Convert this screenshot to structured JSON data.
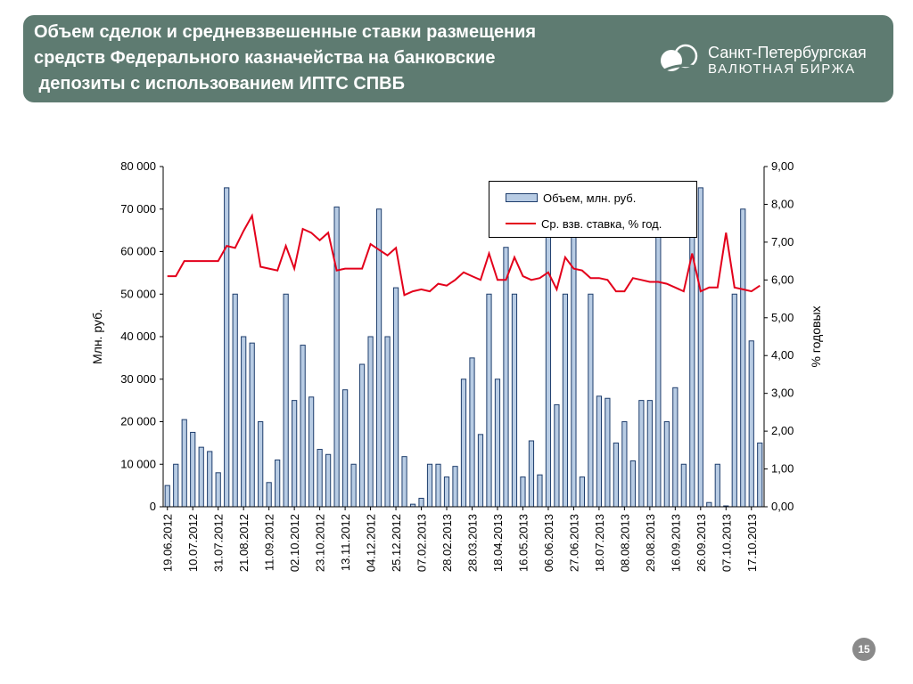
{
  "header": {
    "title_lines": [
      "Объем сделок и средневзвешенные ставки размещения",
      "средств Федерального казначейства на банковские",
      " депозиты с использованием ИПТС СПВБ"
    ],
    "logo_line1": "Санкт-Петербургская",
    "logo_line2": "ВАЛЮТНАЯ БИРЖА"
  },
  "page_number": "15",
  "colors": {
    "header_bg": "#5e7b71",
    "bar_fill": "#b8cce4",
    "bar_border": "#1f3e6d",
    "line": "#e3001b"
  },
  "chart_data": {
    "type": "bar",
    "combo": "bar + line (secondary axis)",
    "ylabel": "Млн. руб.",
    "y2label": "% годовых",
    "ylim": [
      0,
      80000
    ],
    "y2lim": [
      0,
      9
    ],
    "y_ticks": [
      "0",
      "10 000",
      "20 000",
      "30 000",
      "40 000",
      "50 000",
      "60 000",
      "70 000",
      "80 000"
    ],
    "y2_ticks": [
      "0,00",
      "1,00",
      "2,00",
      "3,00",
      "4,00",
      "5,00",
      "6,00",
      "7,00",
      "8,00",
      "9,00"
    ],
    "x_tick_labels": [
      "19.06.2012",
      "10.07.2012",
      "31.07.2012",
      "21.08.2012",
      "11.09.2012",
      "02.10.2012",
      "23.10.2012",
      "13.11.2012",
      "04.12.2012",
      "25.12.2012",
      "07.02.2013",
      "28.02.2013",
      "28.03.2013",
      "18.04.2013",
      "16.05.2013",
      "06.06.2013",
      "27.06.2013",
      "18.07.2013",
      "08.08.2013",
      "29.08.2013",
      "16.09.2013",
      "26.09.2013",
      "07.10.2013",
      "17.10.2013"
    ],
    "tick_label_positions": [
      0,
      3,
      6,
      9,
      12,
      15,
      18,
      21,
      24,
      27,
      30,
      33,
      36,
      39,
      42,
      45,
      48,
      51,
      54,
      57,
      60,
      63,
      66,
      69
    ],
    "grid": false,
    "legend_position": "top-right",
    "series": [
      {
        "name": "Объем, млн. руб.",
        "type": "bar",
        "axis": "left",
        "values": [
          5000,
          10000,
          20500,
          17500,
          14000,
          13000,
          8000,
          75000,
          50000,
          40000,
          38500,
          20000,
          5700,
          11000,
          50000,
          25000,
          38000,
          25800,
          13500,
          12300,
          70500,
          27500,
          10000,
          33500,
          40000,
          70000,
          40000,
          51500,
          11800,
          600,
          2000,
          10000,
          10000,
          7000,
          9500,
          30000,
          35000,
          17000,
          50000,
          30000,
          61000,
          50000,
          7000,
          15500,
          7500,
          65000,
          24000,
          50000,
          66000,
          7000,
          50000,
          26000,
          25500,
          15000,
          20000,
          10800,
          25000,
          25000,
          65000,
          20000,
          28000,
          10000,
          65000,
          75000,
          1000,
          10000,
          200,
          50000,
          70000,
          39000,
          15000
        ]
      },
      {
        "name": "Ср. взв. ставка, % год.",
        "type": "line",
        "axis": "right",
        "values": [
          6.1,
          6.1,
          6.5,
          6.5,
          6.5,
          6.5,
          6.5,
          6.9,
          6.85,
          7.3,
          7.7,
          6.35,
          6.3,
          6.25,
          6.9,
          6.3,
          7.35,
          7.25,
          7.05,
          7.25,
          6.25,
          6.3,
          6.3,
          6.3,
          6.95,
          6.8,
          6.65,
          6.85,
          5.6,
          5.7,
          5.75,
          5.7,
          5.9,
          5.85,
          6.0,
          6.2,
          6.1,
          6.0,
          6.7,
          6.0,
          6.0,
          6.6,
          6.1,
          6.0,
          6.05,
          6.2,
          5.75,
          6.6,
          6.3,
          6.25,
          6.05,
          6.05,
          6.0,
          5.7,
          5.7,
          6.05,
          6.0,
          5.95,
          5.95,
          5.9,
          5.8,
          5.7,
          6.7,
          5.7,
          5.8,
          5.8,
          7.25,
          5.8,
          5.75,
          5.7,
          5.85
        ]
      }
    ]
  }
}
